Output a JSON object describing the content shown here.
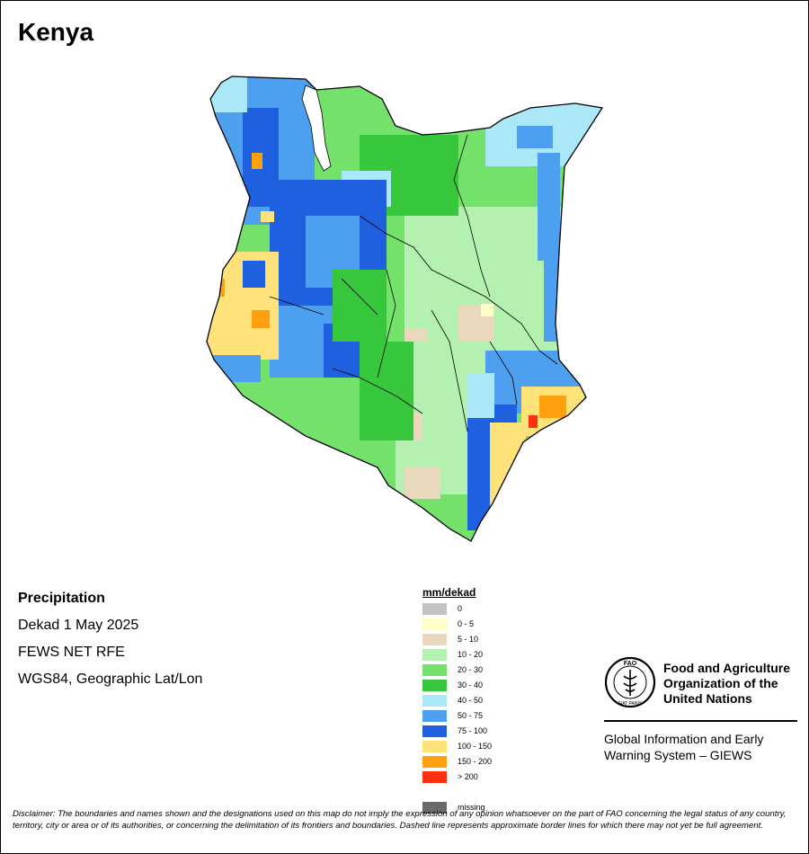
{
  "map": {
    "title": "Kenya",
    "info": {
      "heading": "Precipitation",
      "period": "Dekad 1 May 2025",
      "source": "FEWS NET RFE",
      "projection": "WGS84, Geographic Lat/Lon"
    },
    "legend": {
      "title": "mm/dekad",
      "items": [
        {
          "label": "0",
          "color": "#c2c2c2"
        },
        {
          "label": "0 - 5",
          "color": "#ffffc8"
        },
        {
          "label": "5 - 10",
          "color": "#e9d8bc"
        },
        {
          "label": "10 - 20",
          "color": "#b4f0b0"
        },
        {
          "label": "20 - 30",
          "color": "#74e26a"
        },
        {
          "label": "30 - 40",
          "color": "#36c73c"
        },
        {
          "label": "40 - 50",
          "color": "#aae8f8"
        },
        {
          "label": "50 - 75",
          "color": "#4d9ff0"
        },
        {
          "label": "75 - 100",
          "color": "#1f60e0"
        },
        {
          "label": "100 - 150",
          "color": "#ffe27a"
        },
        {
          "label": "150 - 200",
          "color": "#ffa010"
        },
        {
          "label": "> 200",
          "color": "#ff3010"
        },
        {
          "label": "missing",
          "color": "#6a6a6a"
        }
      ]
    }
  },
  "organization": {
    "name_line1": "Food and Agriculture",
    "name_line2": "Organization of the",
    "name_line3": "United Nations",
    "logo_text": "FAO",
    "logo_motto": "FIAT PANIS",
    "system_line1": "Global Information and Early",
    "system_line2": "Warning System – GIEWS"
  },
  "disclaimer": "Disclaimer: The boundaries and names shown and the designations used on this map do not imply the expression of any opinion whatsoever on the part of FAO concerning the legal status of any country, territory, city or area or of its authorities, or concerning the delimitation of its frontiers and boundaries. Dashed line represents approximate border lines for which there may not yet be full agreement."
}
